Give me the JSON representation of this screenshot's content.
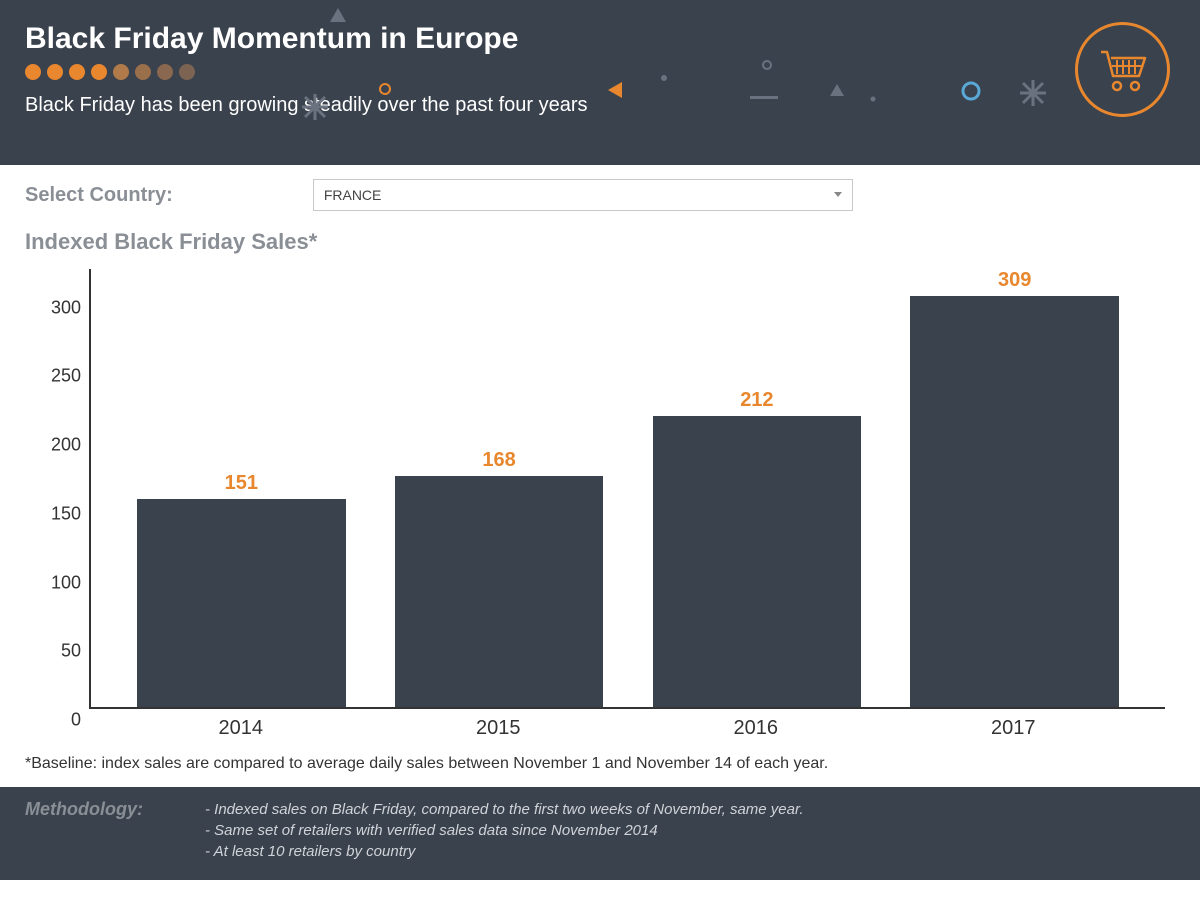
{
  "header": {
    "title": "Black Friday Momentum in Europe",
    "subtitle": "Black Friday has been growing steadily over the past four years",
    "bg_color": "#3a424d",
    "dot_colors": [
      "#e8872e",
      "#e8872e",
      "#e8872e",
      "#e8872e",
      "#b17a4a",
      "#9a6f4c",
      "#8a684f",
      "#7d6352"
    ],
    "accent_color": "#e8872e",
    "blue_accent": "#5aa8d6"
  },
  "selector": {
    "label": "Select Country:",
    "value": "FRANCE"
  },
  "chart": {
    "title": "Indexed Black Friday Sales*",
    "type": "bar",
    "categories": [
      "2014",
      "2015",
      "2016",
      "2017"
    ],
    "values": [
      151,
      168,
      212,
      309
    ],
    "bar_color": "#3a424d",
    "value_label_color": "#e8872e",
    "ylim": [
      0,
      320
    ],
    "ytick_step": 50,
    "yticks": [
      0,
      50,
      100,
      150,
      200,
      250,
      300
    ],
    "axis_color": "#333333",
    "label_fontsize": 20,
    "value_fontsize": 20,
    "bar_width": 0.92
  },
  "baseline_note": "*Baseline: index sales are compared to average daily sales between November 1 and November 14 of each year.",
  "methodology": {
    "label": "Methodology:",
    "lines": [
      "- Indexed sales on Black Friday, compared to the first two weeks of November, same year.",
      "- Same set of retailers with verified sales data since November 2014",
      "- At least 10 retailers by country"
    ]
  }
}
